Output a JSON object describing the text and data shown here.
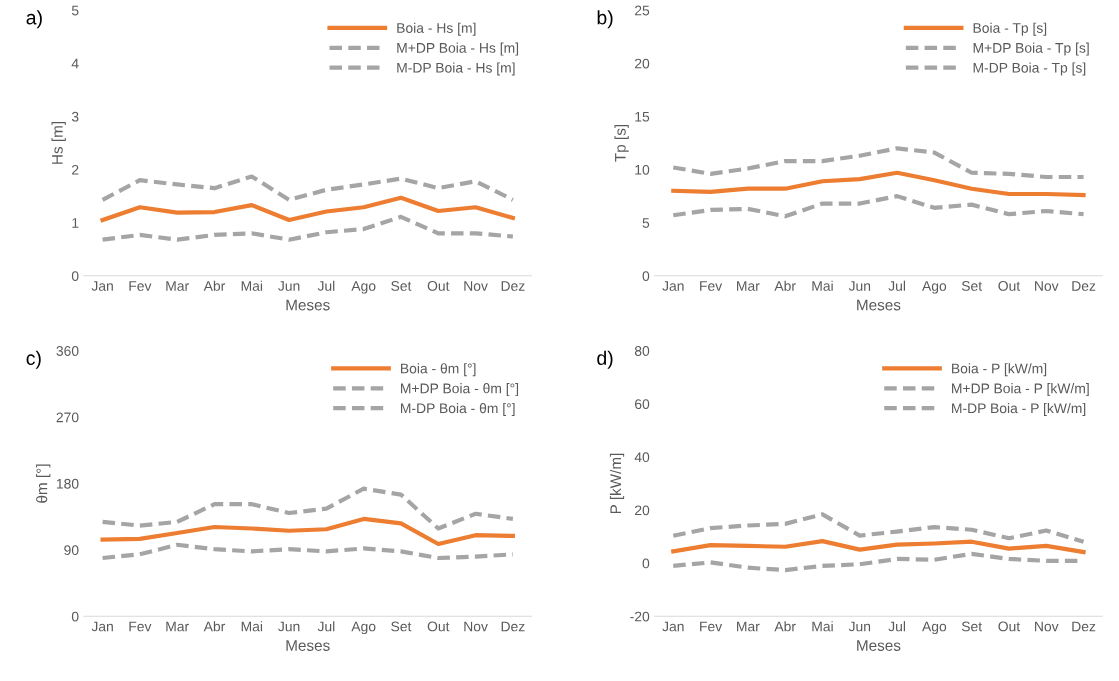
{
  "chart_data": [
    {
      "type": "line",
      "title": "a)",
      "xlabel": "Meses",
      "ylabel": "Hs [m]",
      "categories": [
        "Jan",
        "Fev",
        "Mar",
        "Abr",
        "Mai",
        "Jun",
        "Jul",
        "Ago",
        "Set",
        "Out",
        "Nov",
        "Dez"
      ],
      "ylim": [
        0,
        5
      ],
      "yticks": [
        0,
        1,
        2,
        3,
        4,
        5
      ],
      "legend": "top right",
      "grid": false,
      "marker": "none",
      "series": [
        {
          "name": "Boia - Hs [m]",
          "color": "#ed7d31",
          "line_style": "solid",
          "values": [
            1.05,
            1.29,
            1.19,
            1.2,
            1.33,
            1.05,
            1.21,
            1.29,
            1.47,
            1.22,
            1.29,
            1.09
          ]
        },
        {
          "name": "M+DP Boia - Hs [m]",
          "color": "#a5a5a5",
          "line_style": "dashed",
          "values": [
            1.43,
            1.8,
            1.72,
            1.65,
            1.87,
            1.43,
            1.62,
            1.72,
            1.83,
            1.65,
            1.78,
            1.43
          ]
        },
        {
          "name": "M-DP Boia - Hs [m]",
          "color": "#a5a5a5",
          "line_style": "dashed",
          "values": [
            0.68,
            0.77,
            0.68,
            0.77,
            0.8,
            0.68,
            0.82,
            0.88,
            1.11,
            0.8,
            0.8,
            0.74
          ]
        }
      ]
    },
    {
      "type": "line",
      "title": "b)",
      "xlabel": "Meses",
      "ylabel": "Tp [s]",
      "categories": [
        "Jan",
        "Fev",
        "Mar",
        "Abr",
        "Mai",
        "Jun",
        "Jul",
        "Ago",
        "Set",
        "Out",
        "Nov",
        "Dez"
      ],
      "ylim": [
        0,
        25
      ],
      "yticks": [
        0,
        5,
        10,
        15,
        20,
        25
      ],
      "legend": "top right",
      "grid": false,
      "marker": "none",
      "series": [
        {
          "name": "Boia - Tp [s]",
          "color": "#ed7d31",
          "line_style": "solid",
          "values": [
            8.0,
            7.9,
            8.2,
            8.2,
            8.9,
            9.1,
            9.7,
            9.0,
            8.2,
            7.7,
            7.7,
            7.6
          ]
        },
        {
          "name": "M+DP Boia - Tp [s]",
          "color": "#a5a5a5",
          "line_style": "dashed",
          "values": [
            10.2,
            9.6,
            10.1,
            10.8,
            10.8,
            11.3,
            12.0,
            11.6,
            9.7,
            9.6,
            9.3,
            9.3
          ]
        },
        {
          "name": "M-DP Boia - Tp [s]",
          "color": "#a5a5a5",
          "line_style": "dashed",
          "values": [
            5.7,
            6.2,
            6.3,
            5.6,
            6.8,
            6.8,
            7.5,
            6.4,
            6.7,
            5.8,
            6.1,
            5.8
          ]
        }
      ]
    },
    {
      "type": "line",
      "title": "c)",
      "xlabel": "Meses",
      "ylabel": "θm [°]",
      "categories": [
        "Jan",
        "Fev",
        "Mar",
        "Abr",
        "Mai",
        "Jun",
        "Jul",
        "Ago",
        "Set",
        "Out",
        "Nov",
        "Dez"
      ],
      "ylim": [
        0,
        360
      ],
      "yticks": [
        0,
        90,
        180,
        270,
        360
      ],
      "legend": "top right",
      "grid": false,
      "marker": "none",
      "series": [
        {
          "name": "Boia - θm [°]",
          "color": "#ed7d31",
          "line_style": "solid",
          "values": [
            104,
            105,
            113,
            121,
            119,
            116,
            118,
            132,
            126,
            98,
            110,
            109
          ]
        },
        {
          "name": "M+DP Boia - θm [°]",
          "color": "#a5a5a5",
          "line_style": "dashed",
          "values": [
            128,
            123,
            128,
            152,
            152,
            140,
            146,
            173,
            165,
            119,
            139,
            132
          ]
        },
        {
          "name": "M-DP Boia - θm [°]",
          "color": "#a5a5a5",
          "line_style": "dashed",
          "values": [
            79,
            84,
            97,
            91,
            88,
            91,
            88,
            92,
            88,
            79,
            81,
            84
          ]
        }
      ]
    },
    {
      "type": "line",
      "title": "d)",
      "xlabel": "Meses",
      "ylabel": "P [kW/m]",
      "categories": [
        "Jan",
        "Fev",
        "Mar",
        "Abr",
        "Mai",
        "Jun",
        "Jul",
        "Ago",
        "Set",
        "Out",
        "Nov",
        "Dez"
      ],
      "ylim": [
        -20,
        80
      ],
      "yticks": [
        -20,
        0,
        20,
        40,
        60,
        80
      ],
      "legend": "top right",
      "grid": false,
      "marker": "none",
      "series": [
        {
          "name": "Boia - P [kW/m]",
          "color": "#ed7d31",
          "line_style": "solid",
          "values": [
            4.5,
            6.8,
            6.5,
            6.2,
            8.3,
            5.1,
            7.0,
            7.4,
            8.1,
            5.5,
            6.5,
            4.2
          ]
        },
        {
          "name": "M+DP Boia - P [kW/m]",
          "color": "#a5a5a5",
          "line_style": "dashed",
          "values": [
            10.3,
            13.2,
            14.2,
            14.8,
            18.4,
            10.4,
            11.9,
            13.6,
            12.6,
            9.4,
            12.3,
            8.1
          ]
        },
        {
          "name": "M-DP Boia - P [kW/m]",
          "color": "#a5a5a5",
          "line_style": "dashed",
          "values": [
            -1.0,
            0.3,
            -1.7,
            -2.6,
            -1.0,
            -0.4,
            1.6,
            1.3,
            3.5,
            1.6,
            0.9,
            0.9
          ]
        }
      ]
    }
  ]
}
